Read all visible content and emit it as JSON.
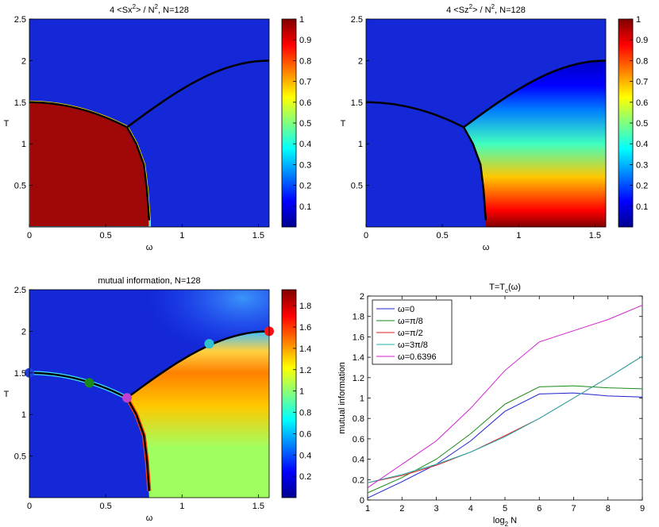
{
  "chart_data": [
    {
      "type": "heatmap",
      "title": "4 <Sx²> / N², N=128",
      "title_parts": {
        "pre": "4 <Sx",
        "sup": "2",
        "post": "> / N",
        "sup2": "2",
        "tail": ", N=128"
      },
      "xlabel": "ω",
      "ylabel": "T",
      "xlim": [
        0,
        1.5708
      ],
      "ylim": [
        0,
        2.5
      ],
      "xticks": [
        "0",
        "0.5",
        "1",
        "1.5"
      ],
      "yticks": [
        "0.5",
        "1",
        "1.5",
        "2",
        "2.5"
      ],
      "colorbar": {
        "range": [
          0,
          1
        ],
        "ticks": [
          "0.1",
          "0.2",
          "0.3",
          "0.4",
          "0.5",
          "0.6",
          "0.7",
          "0.8",
          "0.9",
          "1"
        ]
      },
      "colormap": "jet"
    },
    {
      "type": "heatmap",
      "title": "4 <Sz²> / N², N=128",
      "title_parts": {
        "pre": "4 <Sz",
        "sup": "2",
        "post": "> / N",
        "sup2": "2",
        "tail": ", N=128"
      },
      "xlabel": "ω",
      "ylabel": "T",
      "xlim": [
        0,
        1.5708
      ],
      "ylim": [
        0,
        2.5
      ],
      "xticks": [
        "0",
        "0.5",
        "1",
        "1.5"
      ],
      "yticks": [
        "0.5",
        "1",
        "1.5",
        "2",
        "2.5"
      ],
      "colorbar": {
        "range": [
          0,
          1
        ],
        "ticks": [
          "0.1",
          "0.2",
          "0.3",
          "0.4",
          "0.5",
          "0.6",
          "0.7",
          "0.8",
          "0.9",
          "1"
        ]
      },
      "colormap": "jet"
    },
    {
      "type": "heatmap",
      "title": "mutual information, N=128",
      "xlabel": "ω",
      "ylabel": "T",
      "xlim": [
        0,
        1.5708
      ],
      "ylim": [
        0,
        2.5
      ],
      "xticks": [
        "0",
        "0.5",
        "1",
        "1.5"
      ],
      "yticks": [
        "0.5",
        "1",
        "1.5",
        "2",
        "2.5"
      ],
      "colorbar": {
        "range": [
          0,
          1.95
        ],
        "ticks": [
          "0.2",
          "0.4",
          "0.6",
          "0.8",
          "1",
          "1.2",
          "1.4",
          "1.6",
          "1.8"
        ]
      },
      "colormap": "jet",
      "markers": [
        {
          "x": 0,
          "y": 1.5,
          "color": "#1f3fe0"
        },
        {
          "x": 0.3927,
          "y": 1.38,
          "color": "#1a8a1a"
        },
        {
          "x": 0.6396,
          "y": 1.2,
          "color": "#c040d0"
        },
        {
          "x": 1.1781,
          "y": 1.85,
          "color": "#30c0d0"
        },
        {
          "x": 1.5708,
          "y": 2.0,
          "color": "#ff1010"
        }
      ]
    },
    {
      "type": "line",
      "title": "T=T",
      "title_sub": "c",
      "title_tail": "(ω)",
      "xlabel": "log",
      "xlabel_sub": "2",
      "xlabel_tail": " N",
      "ylabel": "mutual information",
      "xlim": [
        1,
        9
      ],
      "ylim": [
        0,
        2
      ],
      "xticks": [
        "1",
        "2",
        "3",
        "4",
        "5",
        "6",
        "7",
        "8",
        "9"
      ],
      "yticks": [
        "0",
        "0.2",
        "0.4",
        "0.6",
        "0.8",
        "1",
        "1.2",
        "1.4",
        "1.6",
        "1.8",
        "2"
      ],
      "legend_position": "top-left",
      "x": [
        1,
        2,
        3,
        4,
        5,
        6,
        7,
        8,
        9
      ],
      "series": [
        {
          "name": "ω=0",
          "color": "#2020d0",
          "values": [
            0.02,
            0.18,
            0.35,
            0.58,
            0.87,
            1.04,
            1.05,
            1.02,
            1.01
          ]
        },
        {
          "name": "ω=π/8",
          "color": "#1a8a1a",
          "values": [
            0.07,
            0.22,
            0.4,
            0.65,
            0.94,
            1.11,
            1.12,
            1.1,
            1.09
          ]
        },
        {
          "name": "ω=π/2",
          "color": "#e02020",
          "values": [
            0.17,
            0.24,
            0.34,
            0.47,
            0.63,
            0.8,
            1.0,
            1.2,
            1.41
          ]
        },
        {
          "name": "ω=3π/8",
          "color": "#20b0b0",
          "values": [
            0.17,
            0.25,
            0.35,
            0.47,
            0.62,
            0.8,
            1.0,
            1.2,
            1.41
          ]
        },
        {
          "name": "ω=0.6396",
          "color": "#d020d0",
          "values": [
            0.12,
            0.35,
            0.58,
            0.9,
            1.27,
            1.55,
            1.66,
            1.77,
            1.91
          ]
        }
      ]
    }
  ]
}
